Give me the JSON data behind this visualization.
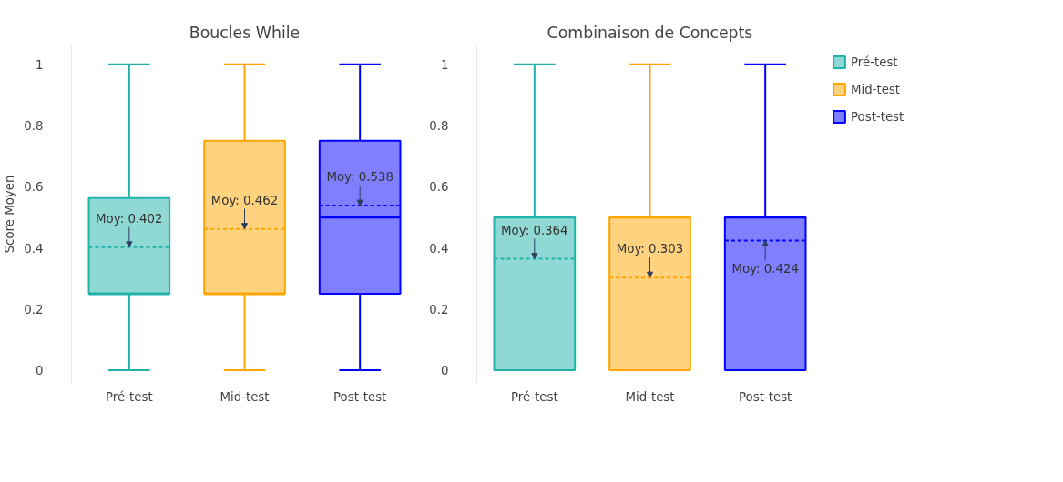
{
  "chart_data": [
    {
      "type": "box",
      "title": "Boucles While",
      "ylabel": "Score Moyen",
      "categories": [
        "Pré-test",
        "Mid-test",
        "Post-test"
      ],
      "series": [
        {
          "color": "#20b2aa",
          "boxes": [
            {
              "low": 0,
              "q1": 0.25,
              "median": 0.25,
              "q3": 0.5625,
              "high": 1,
              "mean": 0.402
            },
            null,
            null
          ]
        },
        {
          "color": "#ffa500",
          "boxes": [
            null,
            {
              "low": 0,
              "q1": 0.25,
              "median": 0.25,
              "q3": 0.75,
              "high": 1,
              "mean": 0.462
            },
            null
          ]
        },
        {
          "color": "#0000ff",
          "boxes": [
            null,
            null,
            {
              "low": 0,
              "q1": 0.25,
              "median": 0.5,
              "q3": 0.75,
              "high": 1,
              "mean": 0.538
            }
          ]
        }
      ],
      "annotations": [
        {
          "text": "Moy: 0.402",
          "x": "Pré-test",
          "y": 0.402
        },
        {
          "text": "Moy: 0.462",
          "x": "Mid-test",
          "y": 0.462
        },
        {
          "text": "Moy: 0.538",
          "x": "Post-test",
          "y": 0.538
        }
      ],
      "ylim": [
        -0.04,
        1.06
      ],
      "yticks": [
        0,
        0.2,
        0.4,
        0.6,
        0.8,
        1
      ],
      "grid": false
    },
    {
      "type": "box",
      "title": "Combinaison de Concepts",
      "categories": [
        "Pré-test",
        "Mid-test",
        "Post-test"
      ],
      "series": [
        {
          "name": "Pré-test",
          "color": "#20b2aa",
          "boxes": [
            {
              "low": 0,
              "q1": 0,
              "median": 0.5,
              "q3": 0.5,
              "high": 1,
              "mean": 0.364
            },
            null,
            null
          ]
        },
        {
          "name": "Mid-test",
          "color": "#ffa500",
          "boxes": [
            null,
            {
              "low": 0,
              "q1": 0,
              "median": 0.5,
              "q3": 0.5,
              "high": 1,
              "mean": 0.303
            },
            null
          ]
        },
        {
          "name": "Post-test",
          "color": "#0000ff",
          "boxes": [
            null,
            null,
            {
              "low": 0,
              "q1": 0,
              "median": 0.5,
              "q3": 0.5,
              "high": 1,
              "mean": 0.424
            }
          ]
        }
      ],
      "annotations": [
        {
          "text": "Moy: 0.364",
          "x": "Pré-test",
          "y": 0.364
        },
        {
          "text": "Moy: 0.303",
          "x": "Mid-test",
          "y": 0.303
        },
        {
          "text": "Moy: 0.424",
          "x": "Post-test",
          "y": 0.424
        }
      ],
      "ylim": [
        -0.04,
        1.06
      ],
      "yticks": [
        0,
        0.2,
        0.4,
        0.6,
        0.8,
        1
      ],
      "grid": false,
      "legend": "top right"
    }
  ]
}
